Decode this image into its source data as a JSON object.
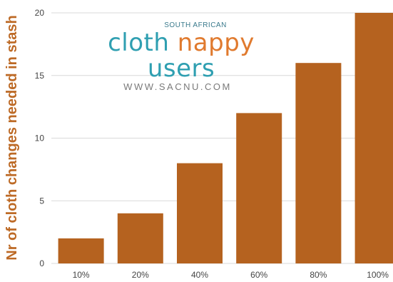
{
  "chart_data": {
    "type": "bar",
    "categories": [
      "10%",
      "20%",
      "40%",
      "60%",
      "80%",
      "100%"
    ],
    "values": [
      2,
      4,
      8,
      12,
      16,
      20
    ],
    "ylabel": "Nr of cloth changes needed in stash",
    "xlabel": "",
    "ylim": [
      0,
      20
    ],
    "yticks": [
      0,
      5,
      10,
      15,
      20
    ],
    "grid": true,
    "bar_color": "#b5621f",
    "grid_color": "#d9d9d9"
  },
  "logo": {
    "top": "SOUTH AFRICAN",
    "word1": "cloth",
    "word2": "nappy",
    "word3": "users",
    "url": "WWW.SACNU.COM"
  }
}
